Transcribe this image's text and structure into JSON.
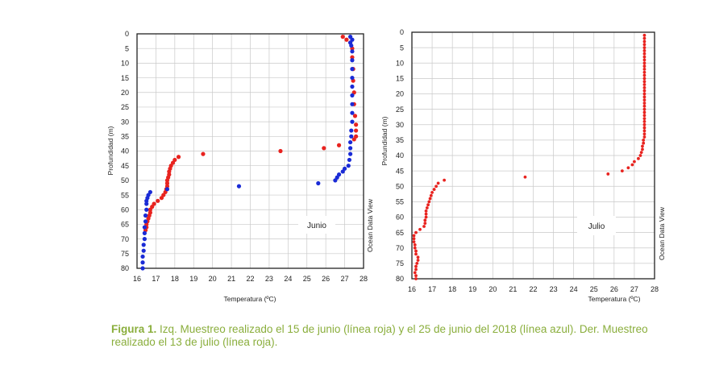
{
  "caption": {
    "lead": "Figura 1.",
    "text": "Izq. Muestreo realizado el 15 de junio (línea roja) y el 25 de junio del 2018 (línea azul). Der. Muestreo realizado el 13 de julio (línea roja)."
  },
  "colors": {
    "red": "#e8231f",
    "blue": "#1a2bd6",
    "grid": "#c9c9c9",
    "caption": "#8aae3c"
  },
  "chart_data": [
    {
      "type": "scatter",
      "xlabel": "Temperatura (ºC)",
      "ylabel": "Profundidad (m)",
      "watermark": "Ocean Data View",
      "annotation": "Junio",
      "xlim": [
        16,
        28
      ],
      "ylim": [
        0,
        80
      ],
      "y_inverted": true,
      "x_ticks": [
        16,
        17,
        18,
        19,
        20,
        21,
        22,
        23,
        24,
        25,
        26,
        27,
        28
      ],
      "y_ticks": [
        0,
        5,
        10,
        15,
        20,
        25,
        30,
        35,
        40,
        45,
        50,
        55,
        60,
        65,
        70,
        75,
        80
      ],
      "grid": true,
      "series": [
        {
          "color": "#e8231f",
          "points": [
            [
              26.9,
              1
            ],
            [
              27.1,
              2
            ],
            [
              27.3,
              3
            ],
            [
              27.4,
              5
            ],
            [
              27.4,
              8
            ],
            [
              27.45,
              12
            ],
            [
              27.45,
              16
            ],
            [
              27.5,
              20
            ],
            [
              27.5,
              24
            ],
            [
              27.55,
              28
            ],
            [
              27.6,
              31
            ],
            [
              27.6,
              33
            ],
            [
              27.6,
              35
            ],
            [
              27.5,
              36
            ],
            [
              26.7,
              38
            ],
            [
              25.9,
              39
            ],
            [
              23.6,
              40
            ],
            [
              19.5,
              41
            ],
            [
              18.2,
              42
            ],
            [
              18.0,
              43
            ],
            [
              17.9,
              44
            ],
            [
              17.8,
              45
            ],
            [
              17.75,
              46
            ],
            [
              17.7,
              47
            ],
            [
              17.7,
              48
            ],
            [
              17.65,
              49
            ],
            [
              17.6,
              50
            ],
            [
              17.6,
              51
            ],
            [
              17.6,
              52
            ],
            [
              17.55,
              53
            ],
            [
              17.5,
              54
            ],
            [
              17.4,
              55
            ],
            [
              17.3,
              56
            ],
            [
              17.1,
              57
            ],
            [
              16.9,
              58
            ],
            [
              16.8,
              59
            ],
            [
              16.7,
              60
            ],
            [
              16.7,
              61
            ],
            [
              16.65,
              62
            ],
            [
              16.6,
              63
            ],
            [
              16.55,
              64
            ],
            [
              16.5,
              65
            ],
            [
              16.5,
              66
            ],
            [
              16.45,
              67
            ]
          ]
        },
        {
          "color": "#1a2bd6",
          "points": [
            [
              27.3,
              1
            ],
            [
              27.4,
              2
            ],
            [
              27.3,
              3
            ],
            [
              27.35,
              4
            ],
            [
              27.4,
              6
            ],
            [
              27.4,
              9
            ],
            [
              27.4,
              12
            ],
            [
              27.4,
              15
            ],
            [
              27.4,
              18
            ],
            [
              27.4,
              21
            ],
            [
              27.4,
              24
            ],
            [
              27.4,
              27
            ],
            [
              27.4,
              30
            ],
            [
              27.35,
              33
            ],
            [
              27.35,
              35
            ],
            [
              27.3,
              37
            ],
            [
              27.3,
              39
            ],
            [
              27.3,
              41
            ],
            [
              27.25,
              43
            ],
            [
              27.2,
              45
            ],
            [
              27.0,
              46
            ],
            [
              26.9,
              47
            ],
            [
              26.7,
              48
            ],
            [
              26.6,
              49
            ],
            [
              26.5,
              50
            ],
            [
              25.6,
              51
            ],
            [
              21.4,
              52
            ],
            [
              17.6,
              53
            ],
            [
              16.7,
              54
            ],
            [
              16.6,
              55
            ],
            [
              16.55,
              56
            ],
            [
              16.5,
              57
            ],
            [
              16.5,
              58
            ],
            [
              16.5,
              60
            ],
            [
              16.45,
              62
            ],
            [
              16.45,
              64
            ],
            [
              16.4,
              66
            ],
            [
              16.4,
              68
            ],
            [
              16.4,
              70
            ],
            [
              16.35,
              72
            ],
            [
              16.35,
              74
            ],
            [
              16.3,
              76
            ],
            [
              16.3,
              78
            ],
            [
              16.3,
              80
            ]
          ]
        }
      ]
    },
    {
      "type": "scatter",
      "xlabel": "Temperatura (ºC)",
      "ylabel": "Profundidad (m)",
      "watermark": "Ocean Data View",
      "annotation": "Julio",
      "xlim": [
        16,
        28
      ],
      "ylim": [
        0,
        80
      ],
      "y_inverted": true,
      "x_ticks": [
        16,
        17,
        18,
        19,
        20,
        21,
        22,
        23,
        24,
        25,
        26,
        27,
        28
      ],
      "y_ticks": [
        0,
        5,
        10,
        15,
        20,
        25,
        30,
        35,
        40,
        45,
        50,
        55,
        60,
        65,
        70,
        75,
        80
      ],
      "grid": true,
      "series": [
        {
          "color": "#e8231f",
          "points": [
            [
              27.5,
              1
            ],
            [
              27.5,
              2
            ],
            [
              27.5,
              3
            ],
            [
              27.5,
              4
            ],
            [
              27.5,
              5
            ],
            [
              27.5,
              6
            ],
            [
              27.5,
              7
            ],
            [
              27.5,
              8
            ],
            [
              27.5,
              9
            ],
            [
              27.5,
              10
            ],
            [
              27.5,
              11
            ],
            [
              27.5,
              12
            ],
            [
              27.5,
              13
            ],
            [
              27.5,
              14
            ],
            [
              27.5,
              15
            ],
            [
              27.5,
              16
            ],
            [
              27.5,
              17
            ],
            [
              27.5,
              18
            ],
            [
              27.5,
              19
            ],
            [
              27.5,
              20
            ],
            [
              27.5,
              21
            ],
            [
              27.5,
              22
            ],
            [
              27.5,
              23
            ],
            [
              27.5,
              24
            ],
            [
              27.5,
              25
            ],
            [
              27.5,
              26
            ],
            [
              27.5,
              27
            ],
            [
              27.5,
              28
            ],
            [
              27.5,
              29
            ],
            [
              27.5,
              30
            ],
            [
              27.5,
              31
            ],
            [
              27.5,
              32
            ],
            [
              27.5,
              33
            ],
            [
              27.5,
              34
            ],
            [
              27.45,
              35
            ],
            [
              27.45,
              36
            ],
            [
              27.4,
              37
            ],
            [
              27.4,
              38
            ],
            [
              27.35,
              39
            ],
            [
              27.3,
              40
            ],
            [
              27.2,
              41
            ],
            [
              27.0,
              42
            ],
            [
              26.9,
              43
            ],
            [
              26.7,
              44
            ],
            [
              26.4,
              45
            ],
            [
              25.7,
              46
            ],
            [
              21.6,
              47
            ],
            [
              17.6,
              48
            ],
            [
              17.3,
              49
            ],
            [
              17.2,
              50
            ],
            [
              17.1,
              51
            ],
            [
              17.0,
              52
            ],
            [
              16.95,
              53
            ],
            [
              16.9,
              54
            ],
            [
              16.85,
              55
            ],
            [
              16.8,
              56
            ],
            [
              16.75,
              57
            ],
            [
              16.7,
              58
            ],
            [
              16.7,
              59
            ],
            [
              16.7,
              60
            ],
            [
              16.65,
              61
            ],
            [
              16.65,
              62
            ],
            [
              16.6,
              63
            ],
            [
              16.4,
              64
            ],
            [
              16.2,
              65
            ],
            [
              16.1,
              66
            ],
            [
              16.1,
              67
            ],
            [
              16.1,
              68
            ],
            [
              16.15,
              69
            ],
            [
              16.15,
              70
            ],
            [
              16.2,
              71
            ],
            [
              16.2,
              72
            ],
            [
              16.3,
              73
            ],
            [
              16.3,
              74
            ],
            [
              16.25,
              75
            ],
            [
              16.2,
              76
            ],
            [
              16.2,
              77
            ],
            [
              16.15,
              78
            ],
            [
              16.2,
              79
            ],
            [
              16.2,
              80
            ]
          ]
        }
      ]
    }
  ]
}
